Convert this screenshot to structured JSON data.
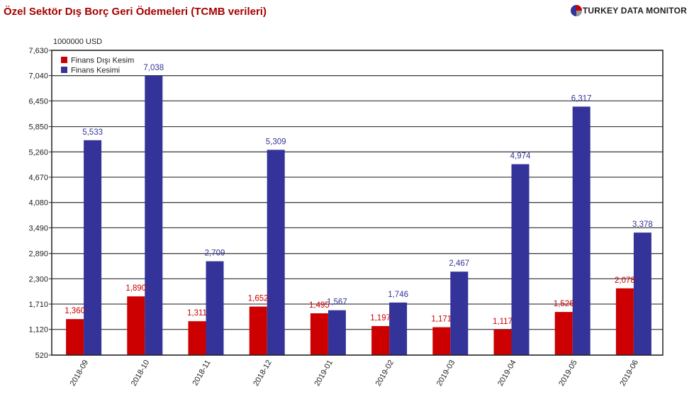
{
  "header": {
    "title": "Özel Sektör Dış Borç Geri Ödemeleri (TCMB verileri)",
    "brand": "TURKEY DATA MONITOR"
  },
  "chart_data": {
    "type": "bar",
    "title": "Özel Sektör Dış Borç Geri Ödemeleri (TCMB verileri)",
    "ylabel": "1000000 USD",
    "xlabel": "",
    "categories": [
      "2018-09",
      "2018-10",
      "2018-11",
      "2018-12",
      "2019-01",
      "2019-02",
      "2019-03",
      "2019-04",
      "2019-05",
      "2019-06"
    ],
    "series": [
      {
        "name": "Finans Dışı Kesim",
        "color": "#cc0000",
        "values": [
          1360,
          1890,
          1311,
          1652,
          1495,
          1197,
          1171,
          1117,
          1526,
          2078
        ]
      },
      {
        "name": "Finans Kesimi",
        "color": "#333399",
        "values": [
          5533,
          7038,
          2709,
          5309,
          1567,
          1746,
          2467,
          4974,
          6317,
          3378
        ]
      }
    ],
    "ylim": [
      520,
      7630
    ],
    "yticks": [
      520,
      1120,
      1710,
      2300,
      2890,
      3490,
      4080,
      4670,
      5260,
      5850,
      6450,
      7040,
      7630
    ],
    "ytick_labels": [
      "520",
      "1,120",
      "1,710",
      "2,300",
      "2,890",
      "3,490",
      "4,080",
      "4,670",
      "5,260",
      "5,850",
      "6,450",
      "7,040",
      "7,630"
    ],
    "value_labels": [
      [
        "1,360",
        "1,890",
        "1,311",
        "1,652",
        "1,495",
        "1,197",
        "1,171",
        "1,117",
        "1,526",
        "2,078"
      ],
      [
        "5,533",
        "7,038",
        "2,709",
        "5,309",
        "1,567",
        "1,746",
        "2,467",
        "4,974",
        "6,317",
        "3,378"
      ]
    ],
    "grid": true,
    "legend": "top-left"
  }
}
